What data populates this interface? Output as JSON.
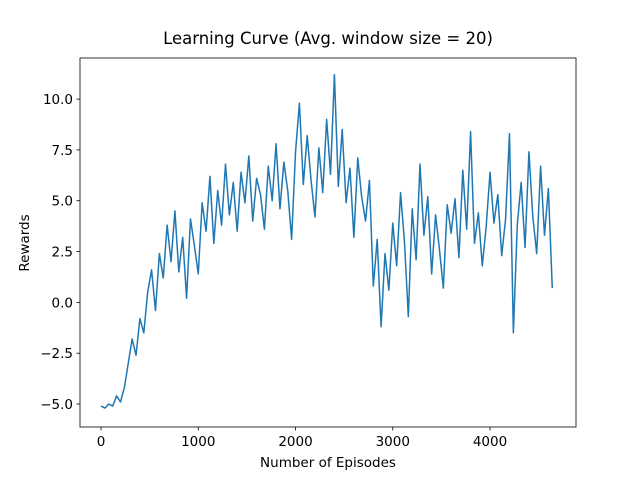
{
  "chart_data": {
    "type": "line",
    "title": "Learning Curve (Avg. window size = 20)",
    "x_label": "Number of Episodes",
    "y_label": "Rewards",
    "x": [
      0,
      40,
      80,
      120,
      160,
      200,
      240,
      280,
      320,
      360,
      400,
      440,
      480,
      520,
      560,
      600,
      640,
      680,
      720,
      760,
      800,
      840,
      880,
      920,
      960,
      1000,
      1040,
      1080,
      1120,
      1160,
      1200,
      1240,
      1280,
      1320,
      1360,
      1400,
      1440,
      1480,
      1520,
      1560,
      1600,
      1640,
      1680,
      1720,
      1760,
      1800,
      1840,
      1880,
      1920,
      1960,
      2000,
      2040,
      2080,
      2120,
      2160,
      2200,
      2240,
      2280,
      2320,
      2360,
      2400,
      2440,
      2480,
      2520,
      2560,
      2600,
      2640,
      2680,
      2720,
      2760,
      2800,
      2840,
      2880,
      2920,
      2960,
      3000,
      3040,
      3080,
      3120,
      3160,
      3200,
      3240,
      3280,
      3320,
      3360,
      3400,
      3440,
      3480,
      3520,
      3560,
      3600,
      3640,
      3680,
      3720,
      3760,
      3800,
      3840,
      3880,
      3920,
      3960,
      4000,
      4040,
      4080,
      4120,
      4160,
      4200,
      4240,
      4280,
      4320,
      4360,
      4400,
      4440,
      4480,
      4520,
      4560,
      4600,
      4640
    ],
    "series": [
      {
        "color": "#1f77b4",
        "values": [
          -5.1,
          -5.2,
          -5.0,
          -5.1,
          -4.6,
          -4.9,
          -4.2,
          -3.0,
          -1.8,
          -2.6,
          -0.8,
          -1.5,
          0.5,
          1.6,
          -0.4,
          2.4,
          1.2,
          3.8,
          2.0,
          4.5,
          1.5,
          3.2,
          0.2,
          4.1,
          2.8,
          1.4,
          4.9,
          3.5,
          6.2,
          2.9,
          5.5,
          3.8,
          6.8,
          4.3,
          5.9,
          3.5,
          6.4,
          4.9,
          7.2,
          4.0,
          6.1,
          5.3,
          3.6,
          6.7,
          5.0,
          7.8,
          4.6,
          6.9,
          5.5,
          3.1,
          7.4,
          9.8,
          5.8,
          8.2,
          6.0,
          4.2,
          7.6,
          5.4,
          9.0,
          6.3,
          11.2,
          5.7,
          8.5,
          4.9,
          6.6,
          3.2,
          7.1,
          5.2,
          4.0,
          6.0,
          0.8,
          3.1,
          -1.2,
          2.4,
          0.6,
          3.9,
          1.8,
          5.4,
          3.0,
          -0.7,
          4.6,
          2.1,
          6.8,
          3.3,
          5.2,
          1.4,
          4.3,
          2.6,
          0.7,
          4.8,
          3.4,
          5.1,
          2.2,
          6.5,
          3.6,
          8.4,
          2.9,
          4.4,
          1.8,
          3.7,
          6.4,
          3.9,
          5.3,
          2.3,
          4.1,
          8.3,
          -1.5,
          3.8,
          5.9,
          2.7,
          7.4,
          4.2,
          2.4,
          6.7,
          3.3,
          5.6,
          0.7
        ]
      }
    ],
    "xlim": [
      -216,
      4884
    ],
    "ylim": [
      -6.13,
      12.02
    ],
    "xticks": [
      0,
      1000,
      2000,
      3000,
      4000
    ],
    "yticks": [
      {
        "value": -5,
        "label": "−5.0"
      },
      {
        "value": -2.5,
        "label": "−2.5"
      },
      {
        "value": 0,
        "label": "0.0"
      },
      {
        "value": 2.5,
        "label": "2.5"
      },
      {
        "value": 5,
        "label": "5.0"
      },
      {
        "value": 7.5,
        "label": "7.5"
      },
      {
        "value": 10,
        "label": "10.0"
      }
    ],
    "grid": false
  }
}
